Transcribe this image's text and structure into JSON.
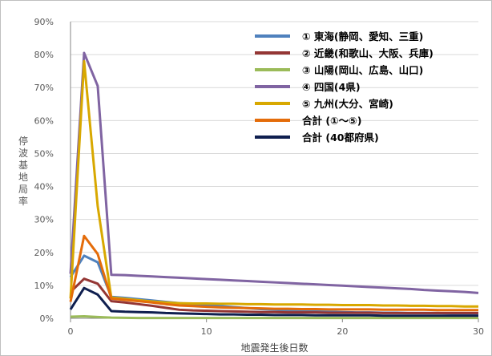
{
  "chart_data": {
    "type": "line",
    "xlabel": "地震発生後日数",
    "ylabel": "停波基地局率",
    "xlim": [
      0,
      30
    ],
    "ylim": [
      0,
      90
    ],
    "x_ticks": [
      "0",
      "10",
      "20",
      "30"
    ],
    "y_ticks": [
      "0%",
      "10%",
      "20%",
      "30%",
      "40%",
      "50%",
      "60%",
      "70%",
      "80%",
      "90%"
    ],
    "grid": "horizontal",
    "legend_position": "top-right",
    "x": [
      0,
      1,
      2,
      3,
      4,
      5,
      6,
      7,
      8,
      9,
      10,
      11,
      12,
      13,
      14,
      15,
      16,
      17,
      18,
      19,
      20,
      21,
      22,
      23,
      24,
      25,
      26,
      27,
      28,
      29,
      30
    ],
    "series": [
      {
        "name": "① 東海(静岡、愛知、三重)",
        "color": "#4f81bd",
        "values": [
          12.5,
          19,
          17,
          6.5,
          6.2,
          5.8,
          5.4,
          5.0,
          4.6,
          4.3,
          4.0,
          3.7,
          3.4,
          3.1,
          2.8,
          2.6,
          2.4,
          2.2,
          2.1,
          2.0,
          1.9,
          1.8,
          1.8,
          1.7,
          1.7,
          1.6,
          1.6,
          1.6,
          1.5,
          1.5,
          1.5
        ]
      },
      {
        "name": "② 近畿(和歌山、大阪、兵庫)",
        "color": "#943634",
        "values": [
          8,
          12,
          10.5,
          5.2,
          4.8,
          4.3,
          3.8,
          3.2,
          2.6,
          2.4,
          2.3,
          2.2,
          2.1,
          2.0,
          1.9,
          1.9,
          1.8,
          1.8,
          1.8,
          1.7,
          1.7,
          1.7,
          1.7,
          1.6,
          1.6,
          1.6,
          1.6,
          1.6,
          1.6,
          1.6,
          1.6
        ]
      },
      {
        "name": "③ 山陽(岡山、広島、山口)",
        "color": "#9bbb59",
        "values": [
          0.5,
          0.6,
          0.4,
          0.2,
          0.15,
          0.1,
          0.1,
          0.1,
          0.1,
          0.1,
          0.1,
          0.1,
          0.1,
          0.1,
          0.1,
          0.1,
          0.1,
          0.1,
          0.1,
          0.1,
          0.1,
          0.1,
          0.1,
          0.1,
          0.1,
          0.1,
          0.1,
          0.1,
          0.1,
          0.1,
          0.1
        ]
      },
      {
        "name": "④ 四国(4県)",
        "color": "#8064a2",
        "values": [
          13.5,
          80.5,
          70.5,
          13.2,
          13.1,
          12.9,
          12.7,
          12.5,
          12.3,
          12.1,
          11.9,
          11.7,
          11.5,
          11.3,
          11.1,
          10.9,
          10.7,
          10.5,
          10.3,
          10.1,
          9.9,
          9.7,
          9.5,
          9.3,
          9.1,
          8.9,
          8.6,
          8.4,
          8.2,
          8.0,
          7.7
        ]
      },
      {
        "name": "⑤ 九州(大分、宮崎)",
        "color": "#d8a800",
        "values": [
          6,
          78,
          34,
          6.3,
          5.9,
          5.5,
          5.1,
          4.8,
          4.6,
          4.5,
          4.5,
          4.4,
          4.4,
          4.3,
          4.3,
          4.2,
          4.2,
          4.2,
          4.1,
          4.1,
          4.0,
          4.0,
          4.0,
          3.9,
          3.9,
          3.8,
          3.8,
          3.7,
          3.7,
          3.6,
          3.6
        ]
      },
      {
        "name": "合計 (①～⑤)",
        "color": "#e46c0a",
        "values": [
          5,
          25,
          19.5,
          6,
          5.6,
          5.2,
          4.8,
          4.3,
          3.9,
          3.7,
          3.5,
          3.3,
          3.2,
          3.1,
          3.0,
          2.9,
          2.9,
          2.8,
          2.8,
          2.7,
          2.7,
          2.7,
          2.7,
          2.6,
          2.6,
          2.6,
          2.6,
          2.5,
          2.5,
          2.5,
          2.5
        ]
      },
      {
        "name": "合計 (40都府県)",
        "color": "#0f1f4f",
        "values": [
          2.7,
          9.2,
          7.2,
          2.2,
          2.0,
          1.9,
          1.8,
          1.6,
          1.5,
          1.4,
          1.3,
          1.2,
          1.2,
          1.1,
          1.1,
          1.0,
          1.0,
          1.0,
          0.9,
          0.9,
          0.9,
          0.9,
          0.9,
          0.8,
          0.8,
          0.8,
          0.8,
          0.8,
          0.8,
          0.8,
          0.8
        ]
      }
    ]
  }
}
